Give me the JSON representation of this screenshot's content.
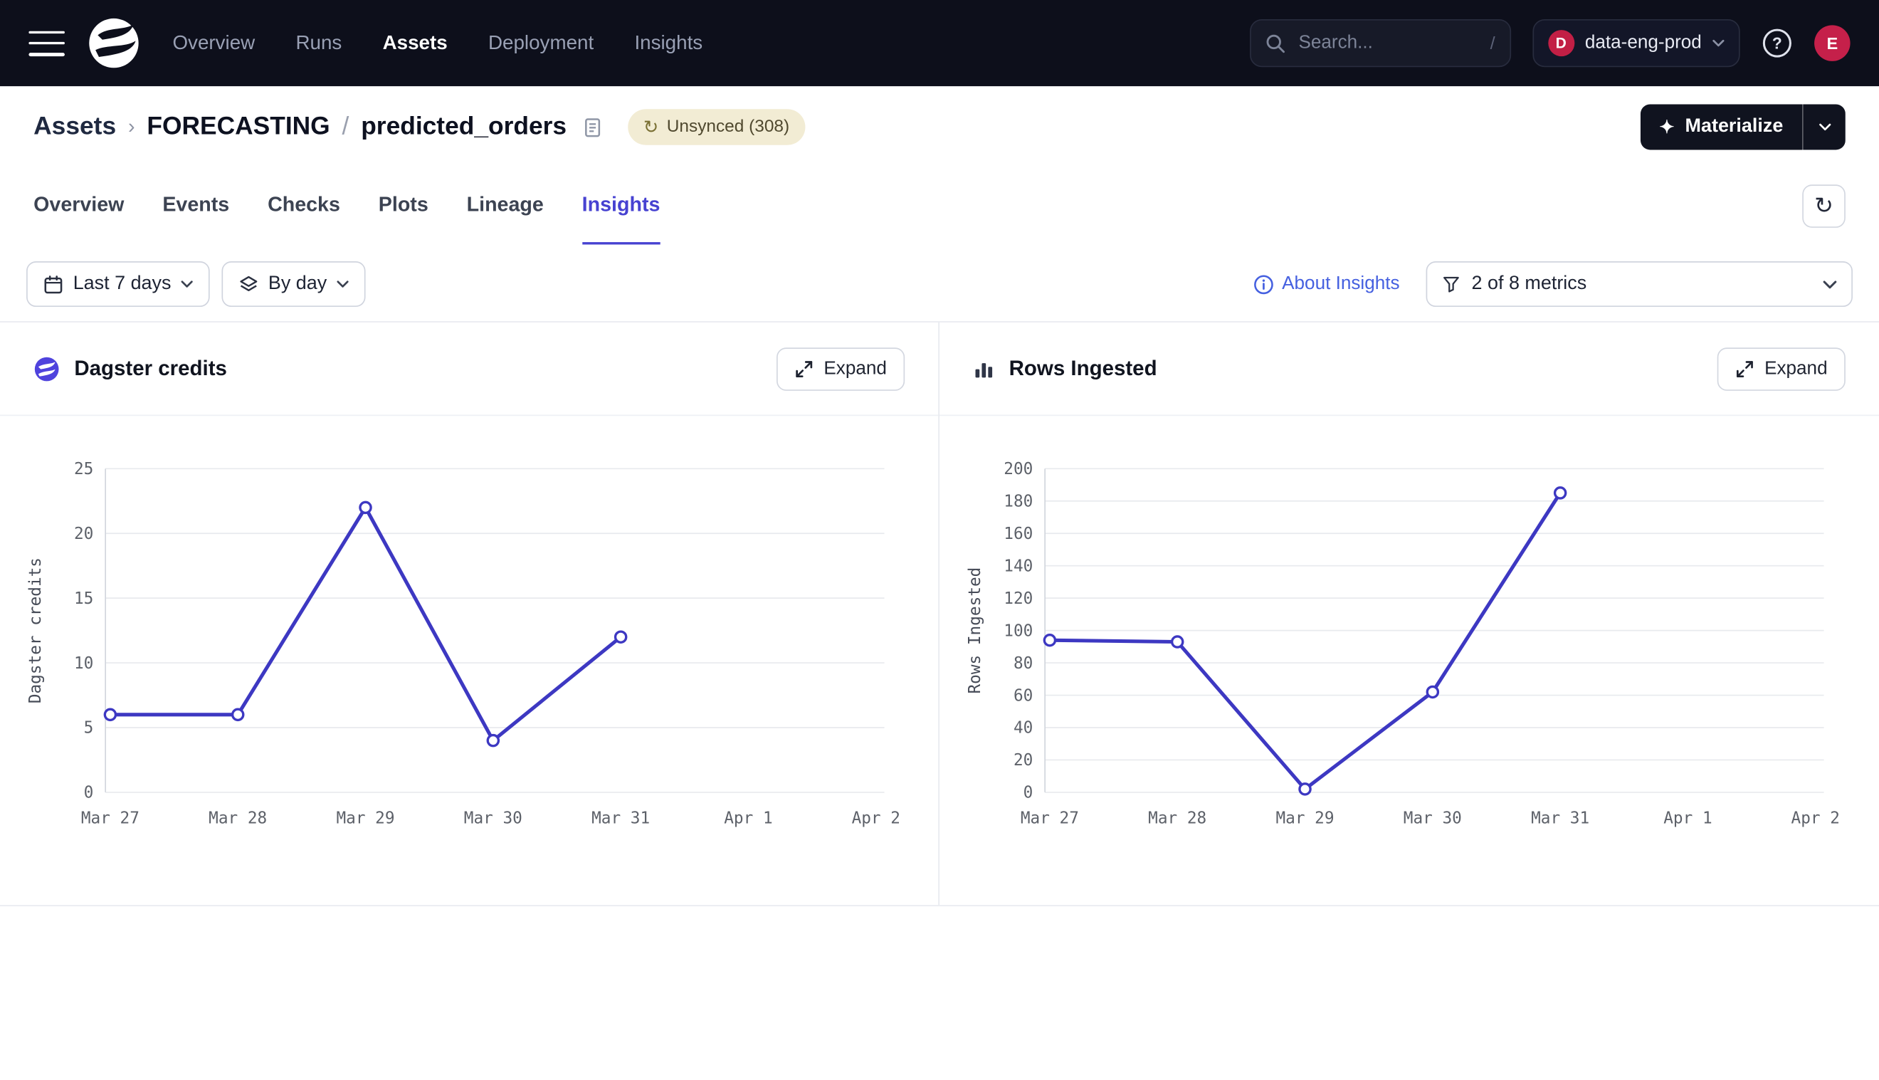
{
  "topnav": {
    "items": [
      {
        "label": "Overview",
        "active": false
      },
      {
        "label": "Runs",
        "active": false
      },
      {
        "label": "Assets",
        "active": true
      },
      {
        "label": "Deployment",
        "active": false
      },
      {
        "label": "Insights",
        "active": false
      }
    ],
    "search": {
      "placeholder": "Search...",
      "shortcut": "/"
    },
    "org": {
      "initial": "D",
      "name": "data-eng-prod"
    },
    "user": {
      "initial": "E"
    }
  },
  "header": {
    "breadcrumb": {
      "root": "Assets",
      "chevron": "›",
      "group": "FORECASTING",
      "slash": "/",
      "asset": "predicted_orders"
    },
    "status_badge": "Unsynced (308)",
    "materialize_label": "Materialize",
    "sparkle": "✦",
    "sync_glyph": "↻"
  },
  "tabs": {
    "items": [
      {
        "label": "Overview",
        "active": false
      },
      {
        "label": "Events",
        "active": false
      },
      {
        "label": "Checks",
        "active": false
      },
      {
        "label": "Plots",
        "active": false
      },
      {
        "label": "Lineage",
        "active": false
      },
      {
        "label": "Insights",
        "active": true
      }
    ],
    "refresh_glyph": "↻"
  },
  "filters": {
    "date_range": "Last 7 days",
    "granularity": "By day",
    "about_link": "About Insights",
    "metrics_filter": "2 of 8 metrics"
  },
  "panels": [
    {
      "title": "Dagster credits",
      "expand_label": "Expand"
    },
    {
      "title": "Rows Ingested",
      "expand_label": "Expand"
    }
  ],
  "chart_data": [
    {
      "type": "line",
      "title": "Dagster credits",
      "ylabel": "Dagster credits",
      "xlabel": "",
      "x_labels": [
        "Mar 27",
        "Mar 28",
        "Mar 29",
        "Mar 30",
        "Mar 31",
        "Apr 1",
        "Apr 2"
      ],
      "values": [
        6,
        6,
        22,
        4,
        12,
        null,
        null
      ],
      "yticks": [
        0,
        5,
        10,
        15,
        20,
        25
      ],
      "ylim": [
        0,
        25
      ],
      "line_color": "#3d38c2",
      "grid": true,
      "legend": "none"
    },
    {
      "type": "line",
      "title": "Rows Ingested",
      "ylabel": "Rows Ingested",
      "xlabel": "",
      "x_labels": [
        "Mar 27",
        "Mar 28",
        "Mar 29",
        "Mar 30",
        "Mar 31",
        "Apr 1",
        "Apr 2"
      ],
      "values": [
        94,
        93,
        2,
        62,
        185,
        null,
        null
      ],
      "yticks": [
        0,
        20,
        40,
        60,
        80,
        100,
        120,
        140,
        160,
        180,
        200
      ],
      "ylim": [
        0,
        200
      ],
      "line_color": "#3d38c2",
      "grid": true,
      "legend": "none"
    }
  ],
  "colors": {
    "accent": "#4742d1",
    "line": "#3d38c2",
    "nav_bg": "#0d0f1b",
    "badge_bg": "#f2ecd4",
    "brand_red": "#c5204a"
  }
}
